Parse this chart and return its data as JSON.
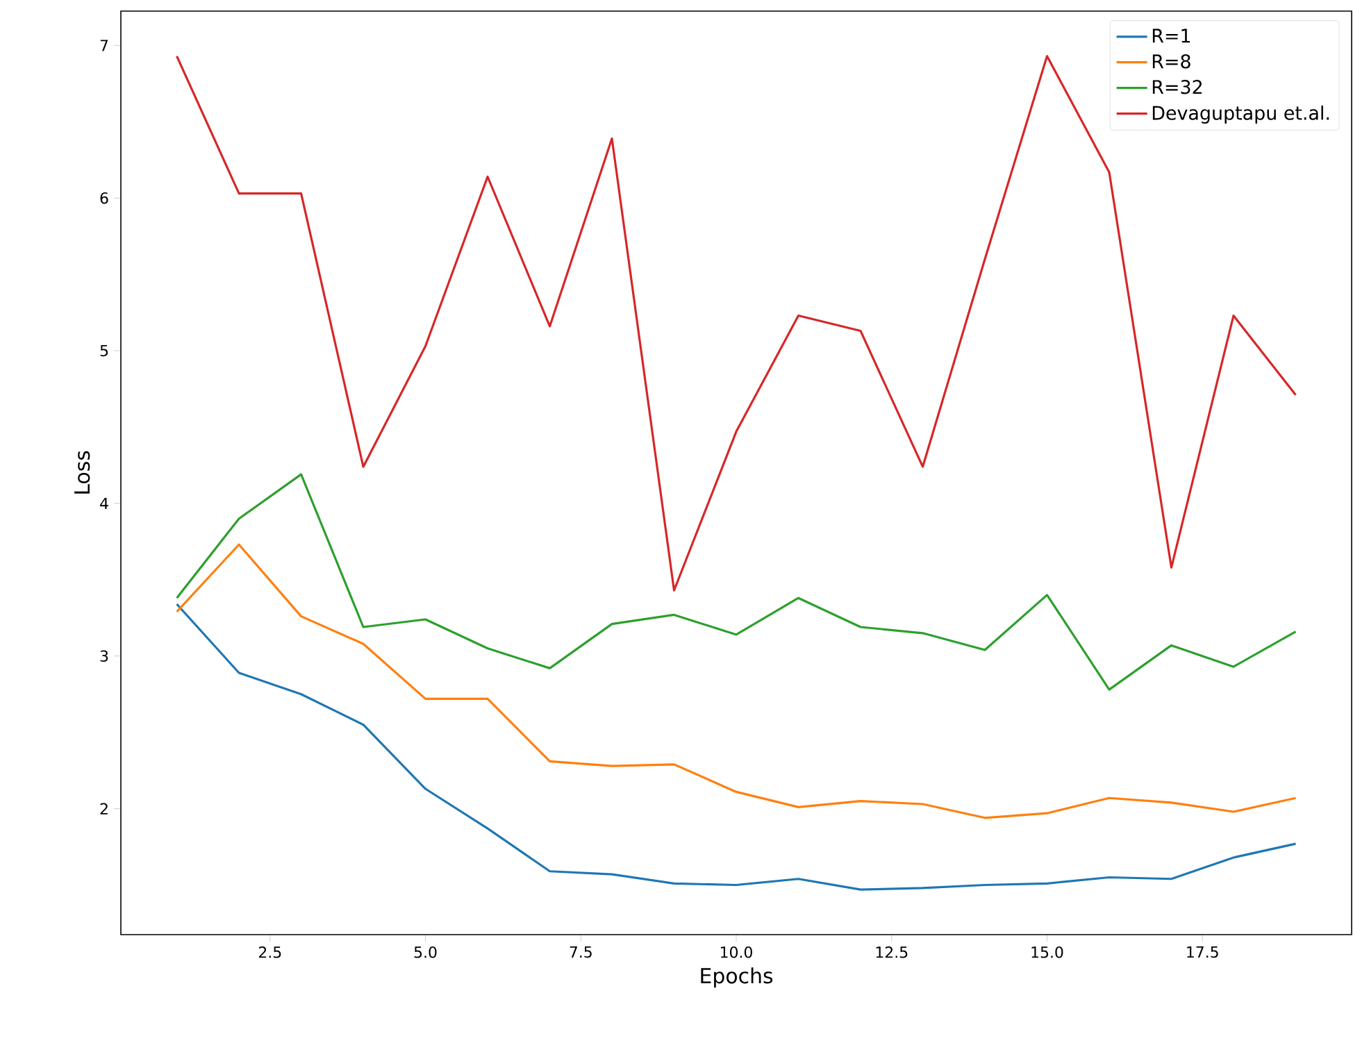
{
  "chart_data": {
    "type": "line",
    "xlabel": "Epochs",
    "ylabel": "Loss",
    "x": [
      1,
      2,
      3,
      4,
      5,
      6,
      7,
      8,
      9,
      10,
      11,
      12,
      13,
      14,
      15,
      16,
      17,
      18,
      19
    ],
    "series": [
      {
        "name": "R=1",
        "color": "#1f77b4",
        "values": [
          3.34,
          2.89,
          2.75,
          2.55,
          2.13,
          1.87,
          1.59,
          1.57,
          1.51,
          1.5,
          1.54,
          1.47,
          1.48,
          1.5,
          1.51,
          1.55,
          1.54,
          1.68,
          1.77
        ]
      },
      {
        "name": "R=8",
        "color": "#ff7f0e",
        "values": [
          3.29,
          3.73,
          3.26,
          3.08,
          2.72,
          2.72,
          2.31,
          2.28,
          2.29,
          2.11,
          2.01,
          2.05,
          2.03,
          1.94,
          1.97,
          2.07,
          2.04,
          1.98,
          2.07
        ]
      },
      {
        "name": "R=32",
        "color": "#2ca02c",
        "values": [
          3.38,
          3.9,
          4.19,
          3.19,
          3.24,
          3.05,
          2.92,
          3.21,
          3.27,
          3.14,
          3.38,
          3.19,
          3.15,
          3.04,
          3.4,
          2.78,
          3.07,
          2.93,
          3.16
        ]
      },
      {
        "name": "Devaguptapu et.al.",
        "color": "#d62728",
        "values": [
          6.93,
          6.03,
          6.03,
          4.24,
          5.03,
          6.14,
          5.16,
          6.39,
          3.43,
          4.47,
          5.23,
          5.13,
          4.24,
          5.6,
          6.93,
          6.17,
          3.58,
          5.23,
          4.71
        ]
      }
    ],
    "xlim": [
      0.1,
      19.9
    ],
    "ylim": [
      1.175,
      7.225
    ],
    "xticks": [
      {
        "value": 2.5,
        "label": "2.5"
      },
      {
        "value": 5,
        "label": "5.0"
      },
      {
        "value": 7.5,
        "label": "7.5"
      },
      {
        "value": 10,
        "label": "10.0"
      },
      {
        "value": 12.5,
        "label": "12.5"
      },
      {
        "value": 15,
        "label": "15.0"
      },
      {
        "value": 17.5,
        "label": "17.5"
      }
    ],
    "yticks": [
      2,
      3,
      4,
      5,
      6,
      7
    ],
    "legend": "top right",
    "grid": false,
    "marker": "none",
    "line_style": "solid"
  }
}
